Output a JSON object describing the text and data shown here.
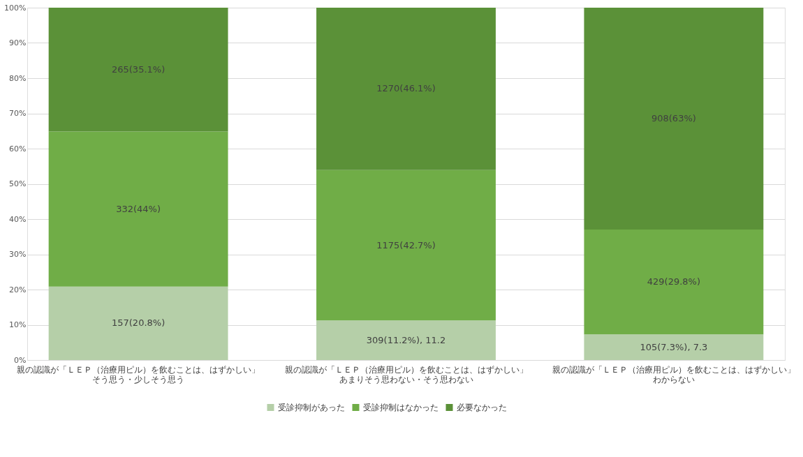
{
  "chart_data": {
    "type": "bar",
    "stacked": true,
    "categories": [
      "親の認識が「ＬＥＰ（治療用ピル）を飲むことは、はずかしい」そう思う・少しそう思う",
      "親の認識が「ＬＥＰ（治療用ピル）を飲むことは、はずかしい」あまりそう思わない・そう思わない",
      "親の認識が「ＬＥＰ（治療用ピル）を飲むことは、はずかしい」わからない"
    ],
    "series": [
      {
        "name": "受診抑制があった",
        "color": "#b5cfa8",
        "values": [
          20.82,
          11.22,
          7.28
        ],
        "value_labels": [
          "157(20.8%)",
          "309(11.2%), 11.2",
          "105(7.3%), 7.3"
        ]
      },
      {
        "name": "受診抑制はなかった",
        "color": "#70ad47",
        "values": [
          44.03,
          42.67,
          29.75
        ],
        "value_labels": [
          "332(44%)",
          "1175(42.7%)",
          "429(29.8%)"
        ]
      },
      {
        "name": "必要なかった",
        "color": "#5b9138",
        "values": [
          35.15,
          46.11,
          62.97
        ],
        "value_labels": [
          "265(35.1%)",
          "1270(46.1%)",
          "908(63%)"
        ]
      }
    ],
    "ylim": [
      0,
      100
    ],
    "yticks": [
      {
        "value": 0,
        "label": "0%"
      },
      {
        "value": 10,
        "label": "10%"
      },
      {
        "value": 20,
        "label": "20%"
      },
      {
        "value": 30,
        "label": "30%"
      },
      {
        "value": 40,
        "label": "40%"
      },
      {
        "value": 50,
        "label": "50%"
      },
      {
        "value": 60,
        "label": "60%"
      },
      {
        "value": 70,
        "label": "70%"
      },
      {
        "value": 80,
        "label": "80%"
      },
      {
        "value": 90,
        "label": "90%"
      },
      {
        "value": 100,
        "label": "100%"
      }
    ],
    "grid": "y",
    "legend": "bottom"
  }
}
